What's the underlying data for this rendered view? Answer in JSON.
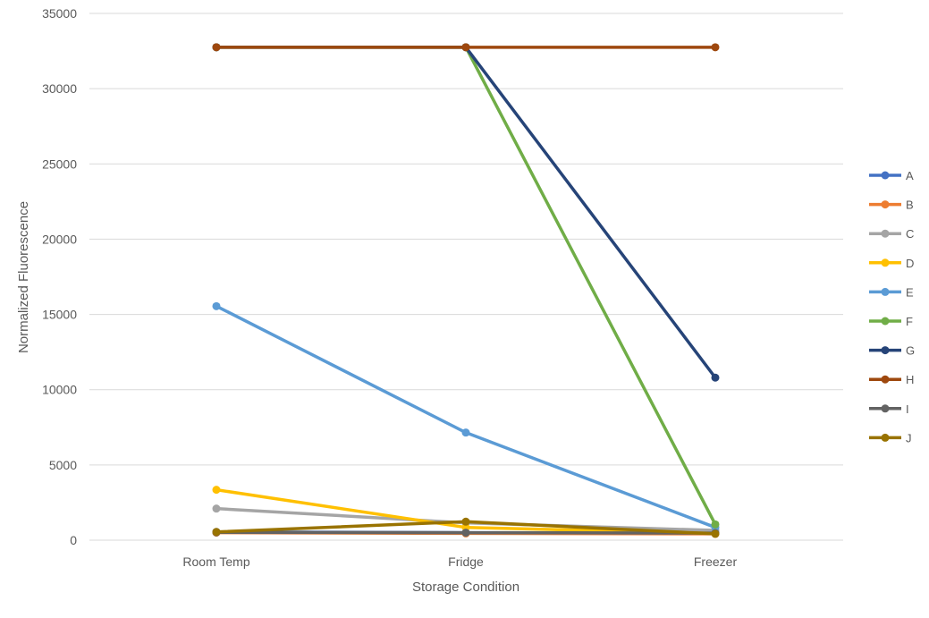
{
  "chart_data": {
    "type": "line",
    "title": "",
    "xlabel": "Storage Condition",
    "ylabel": "Normalized Fluorescence",
    "categories": [
      "Room Temp",
      "Fridge",
      "Freezer"
    ],
    "ylim": [
      0,
      35000
    ],
    "yticks": [
      0,
      5000,
      10000,
      15000,
      20000,
      25000,
      30000,
      35000
    ],
    "grid": true,
    "legend_position": "right",
    "series": [
      {
        "name": "A",
        "color": "#4472C4",
        "values": [
          550,
          500,
          480
        ]
      },
      {
        "name": "B",
        "color": "#ED7D31",
        "values": [
          500,
          450,
          420
        ]
      },
      {
        "name": "C",
        "color": "#A5A5A5",
        "values": [
          2100,
          1150,
          650
        ]
      },
      {
        "name": "D",
        "color": "#FFC000",
        "values": [
          3350,
          850,
          450
        ]
      },
      {
        "name": "E",
        "color": "#5B9BD5",
        "values": [
          15550,
          7150,
          850
        ]
      },
      {
        "name": "F",
        "color": "#70AD47",
        "values": [
          32750,
          32750,
          1050
        ]
      },
      {
        "name": "G",
        "color": "#264478",
        "values": [
          32750,
          32750,
          10800
        ]
      },
      {
        "name": "H",
        "color": "#9E480E",
        "values": [
          32750,
          32750,
          32750
        ]
      },
      {
        "name": "I",
        "color": "#636363",
        "values": [
          520,
          500,
          470
        ]
      },
      {
        "name": "J",
        "color": "#997300",
        "values": [
          550,
          1230,
          420
        ]
      }
    ]
  }
}
